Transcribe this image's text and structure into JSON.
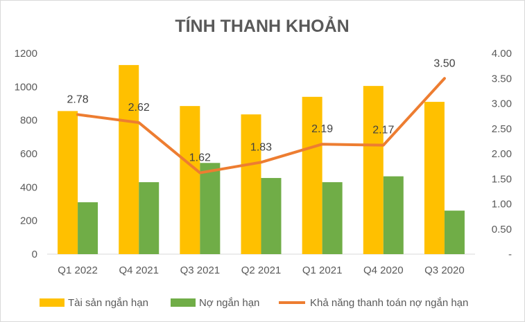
{
  "chart_data": {
    "type": "bar",
    "title": "TÍNH THANH KHOẢN",
    "categories": [
      "Q1 2022",
      "Q4 2021",
      "Q3 2021",
      "Q2 2021",
      "Q1 2021",
      "Q4 2020",
      "Q3 2020"
    ],
    "series": [
      {
        "name": "Tài sản ngắn hạn",
        "type": "bar",
        "axis": "left",
        "color": "#FFC000",
        "values": [
          855,
          1130,
          885,
          835,
          940,
          1005,
          910
        ]
      },
      {
        "name": "Nợ ngắn hạn",
        "type": "bar",
        "axis": "left",
        "color": "#70AD47",
        "values": [
          310,
          430,
          545,
          455,
          430,
          465,
          260
        ]
      },
      {
        "name": "Khả năng thanh toán nợ ngắn hạn",
        "type": "line",
        "axis": "right",
        "color": "#ED7D31",
        "values": [
          2.78,
          2.62,
          1.62,
          1.83,
          2.19,
          2.17,
          3.5
        ],
        "labels": [
          "2.78",
          "2.62",
          "1.62",
          "1.83",
          "2.19",
          "2.17",
          "3.50"
        ]
      }
    ],
    "y_left": {
      "ylim": [
        0,
        1200
      ],
      "ticks": [
        "0",
        "200",
        "400",
        "600",
        "800",
        "1000",
        "1200"
      ]
    },
    "y_right": {
      "ylim": [
        0,
        4
      ],
      "ticks": [
        "-",
        "0.50",
        "1.00",
        "1.50",
        "2.00",
        "2.50",
        "3.00",
        "3.50",
        "4.00"
      ]
    },
    "grid": false,
    "legend": "bottom"
  }
}
